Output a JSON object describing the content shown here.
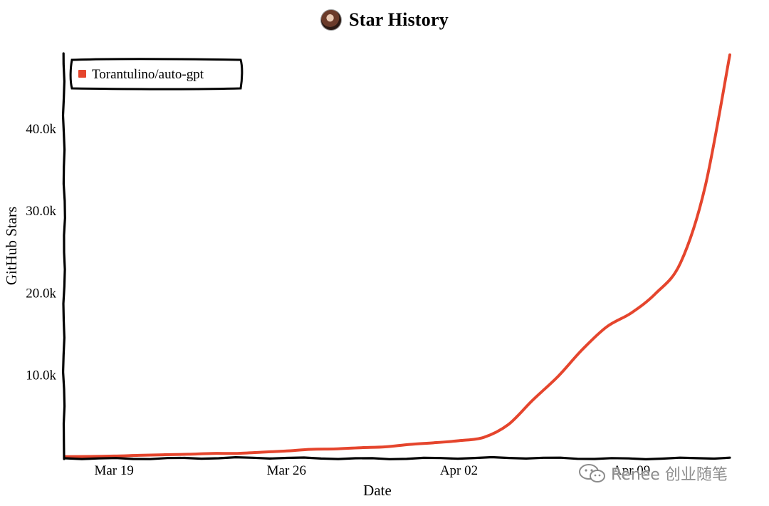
{
  "header": {
    "title": "Star History"
  },
  "watermark": {
    "text": "Renee 创业随笔"
  },
  "colors": {
    "series": "#e5452d",
    "axis": "#000000"
  },
  "chart_data": {
    "type": "line",
    "title": "Star History",
    "xlabel": "Date",
    "ylabel": "GitHub Stars",
    "legend": {
      "placement": "top-left",
      "entries": [
        "Torantulino/auto-gpt"
      ]
    },
    "grid": false,
    "x_ticks": [
      {
        "date": "2023-03-19",
        "label": "Mar 19"
      },
      {
        "date": "2023-03-26",
        "label": "Mar 26"
      },
      {
        "date": "2023-04-02",
        "label": "Apr 02"
      },
      {
        "date": "2023-04-09",
        "label": "Apr 09"
      }
    ],
    "y_ticks": [
      {
        "value": 10000,
        "label": "10.0k"
      },
      {
        "value": 20000,
        "label": "20.0k"
      },
      {
        "value": 30000,
        "label": "30.0k"
      },
      {
        "value": 40000,
        "label": "40.0k"
      }
    ],
    "xlim": [
      "2023-03-17",
      "2023-04-13"
    ],
    "ylim": [
      0,
      49000
    ],
    "series": [
      {
        "name": "Torantulino/auto-gpt",
        "color": "#e5452d",
        "points": [
          [
            "2023-03-17",
            100
          ],
          [
            "2023-03-18",
            130
          ],
          [
            "2023-03-19",
            180
          ],
          [
            "2023-03-20",
            270
          ],
          [
            "2023-03-21",
            340
          ],
          [
            "2023-03-22",
            400
          ],
          [
            "2023-03-23",
            500
          ],
          [
            "2023-03-24",
            500
          ],
          [
            "2023-03-25",
            650
          ],
          [
            "2023-03-26",
            800
          ],
          [
            "2023-03-27",
            1000
          ],
          [
            "2023-03-28",
            1050
          ],
          [
            "2023-03-29",
            1200
          ],
          [
            "2023-03-30",
            1300
          ],
          [
            "2023-03-31",
            1600
          ],
          [
            "2023-04-01",
            1800
          ],
          [
            "2023-04-02",
            2050
          ],
          [
            "2023-04-03",
            2450
          ],
          [
            "2023-04-04",
            4000
          ],
          [
            "2023-04-05",
            7000
          ],
          [
            "2023-04-06",
            9800
          ],
          [
            "2023-04-07",
            13100
          ],
          [
            "2023-04-08",
            15900
          ],
          [
            "2023-04-09",
            17600
          ],
          [
            "2023-04-10",
            20000
          ],
          [
            "2023-04-11",
            23700
          ],
          [
            "2023-04-12",
            33000
          ],
          [
            "2023-04-13",
            49000
          ]
        ]
      }
    ]
  }
}
